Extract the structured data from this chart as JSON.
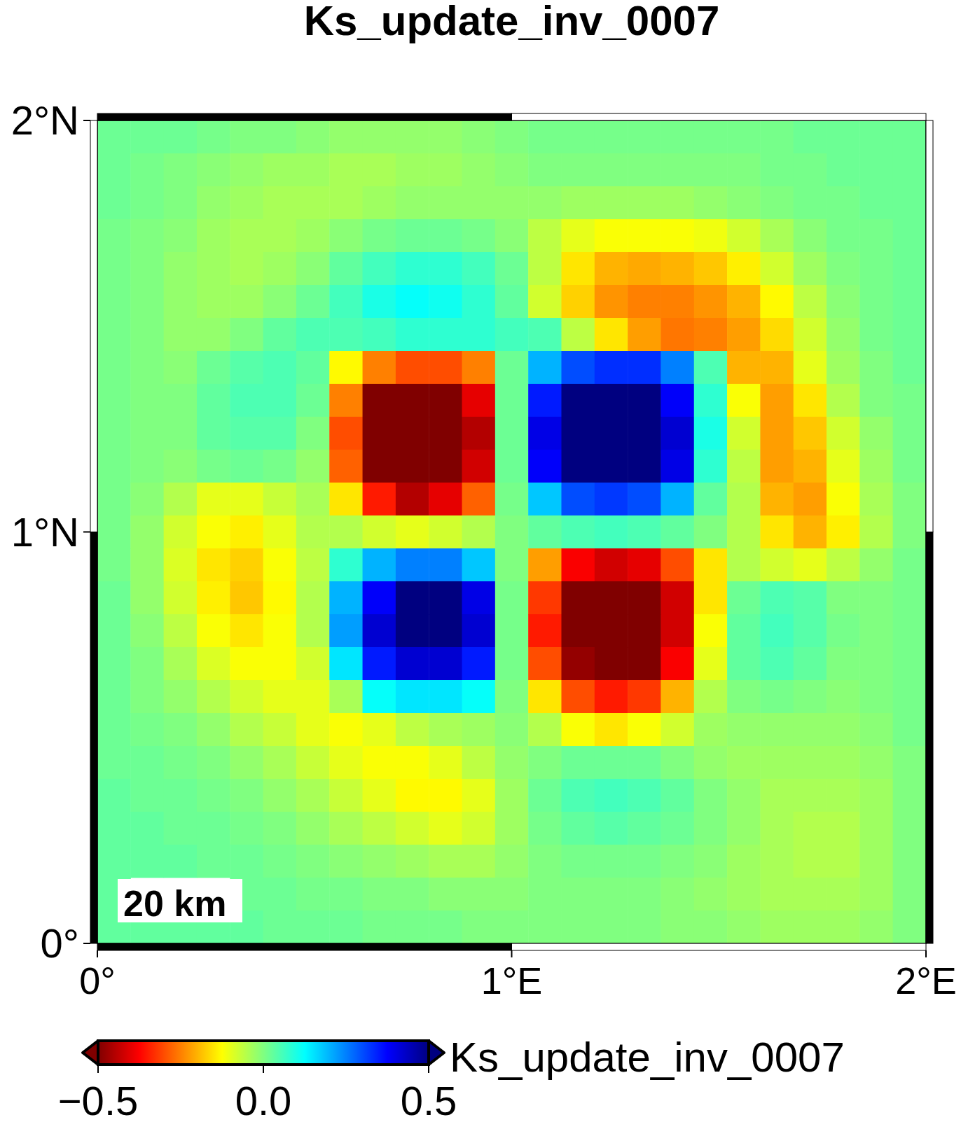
{
  "chart_data": {
    "type": "heatmap",
    "title": "Ks_update_inv_0007",
    "clabel": "Ks_update_inv_0007",
    "annotations": [
      "20 km"
    ],
    "xlim": [
      0,
      2
    ],
    "xticks": [
      {
        "value": 0,
        "label": "0°"
      },
      {
        "value": 1,
        "label": "1°E"
      },
      {
        "value": 2,
        "label": "2°E"
      }
    ],
    "ylim": [
      0,
      2
    ],
    "yticks": [
      {
        "value": 0,
        "label": "0°"
      },
      {
        "value": 1,
        "label": "1°N"
      },
      {
        "value": 2,
        "label": "2°N"
      }
    ],
    "clim": [
      -0.5,
      0.5
    ],
    "cticks": [
      {
        "value": -0.5,
        "label": "−0.5"
      },
      {
        "value": 0,
        "label": "0.0"
      },
      {
        "value": 0.5,
        "label": "0.5"
      }
    ],
    "cells": [
      [
        0.02,
        0.02,
        0.02,
        0.01,
        0,
        0,
        -0.01,
        -0.02,
        -0.02,
        -0.02,
        -0.02,
        -0.01,
        0,
        0.01,
        0.01,
        0.01,
        0.01,
        0.01,
        0.01,
        0.01,
        0.01,
        0.02,
        0.02,
        0.02,
        0.02
      ],
      [
        0.02,
        0.01,
        0,
        -0.01,
        -0.02,
        -0.03,
        -0.03,
        -0.04,
        -0.04,
        -0.03,
        -0.03,
        -0.02,
        -0.01,
        0,
        0,
        0,
        0,
        0,
        0,
        0,
        0.01,
        0.01,
        0.02,
        0.02,
        0.02
      ],
      [
        0.02,
        0.01,
        0,
        -0.02,
        -0.03,
        -0.04,
        -0.04,
        -0.04,
        -0.03,
        -0.02,
        -0.02,
        -0.02,
        -0.02,
        -0.02,
        -0.03,
        -0.03,
        -0.03,
        -0.03,
        -0.02,
        -0.01,
        0,
        0.01,
        0.01,
        0.02,
        0.02
      ],
      [
        0.01,
        0,
        -0.01,
        -0.03,
        -0.04,
        -0.04,
        -0.03,
        -0.01,
        0.01,
        0.02,
        0.02,
        0.01,
        -0.01,
        -0.06,
        -0.1,
        -0.12,
        -0.12,
        -0.12,
        -0.11,
        -0.08,
        -0.04,
        -0.01,
        0.01,
        0.01,
        0.02
      ],
      [
        0.01,
        0,
        -0.02,
        -0.03,
        -0.04,
        -0.03,
        -0.01,
        0.03,
        0.06,
        0.08,
        0.08,
        0.06,
        0.02,
        -0.06,
        -0.15,
        -0.2,
        -0.21,
        -0.2,
        -0.18,
        -0.14,
        -0.08,
        -0.03,
        0,
        0.01,
        0.02
      ],
      [
        0.01,
        0,
        -0.02,
        -0.03,
        -0.03,
        -0.01,
        0.02,
        0.06,
        0.1,
        0.12,
        0.11,
        0.08,
        0.03,
        -0.08,
        -0.17,
        -0.23,
        -0.25,
        -0.25,
        -0.23,
        -0.2,
        -0.13,
        -0.06,
        -0.01,
        0.01,
        0.02
      ],
      [
        0.01,
        0,
        -0.02,
        -0.02,
        0,
        0.03,
        0.05,
        0.05,
        0.06,
        0.08,
        0.08,
        0.08,
        0.06,
        0.05,
        -0.06,
        -0.15,
        -0.22,
        -0.26,
        -0.25,
        -0.22,
        -0.16,
        -0.08,
        -0.02,
        0.01,
        0.02
      ],
      [
        0.01,
        0,
        -0.01,
        0.02,
        0.04,
        0.05,
        0.03,
        -0.13,
        -0.25,
        -0.3,
        -0.3,
        -0.25,
        0.02,
        0.2,
        0.3,
        0.33,
        0.33,
        0.25,
        0.05,
        -0.2,
        -0.2,
        -0.1,
        -0.03,
        0,
        0.02
      ],
      [
        0.01,
        0,
        0,
        0.03,
        0.05,
        0.05,
        0.02,
        -0.25,
        -0.5,
        -0.5,
        -0.5,
        -0.4,
        0.02,
        0.35,
        0.5,
        0.5,
        0.5,
        0.38,
        0.08,
        -0.12,
        -0.22,
        -0.15,
        -0.05,
        0,
        0.01
      ],
      [
        0.01,
        0,
        0,
        0.03,
        0.04,
        0.04,
        0,
        -0.3,
        -0.5,
        -0.5,
        -0.5,
        -0.45,
        0.02,
        0.4,
        0.5,
        0.5,
        0.5,
        0.42,
        0.1,
        -0.08,
        -0.22,
        -0.18,
        -0.08,
        -0.02,
        0.01
      ],
      [
        0.01,
        0,
        -0.01,
        0.01,
        0.02,
        0.01,
        -0.02,
        -0.28,
        -0.5,
        -0.5,
        -0.5,
        -0.42,
        0.02,
        0.38,
        0.5,
        0.5,
        0.5,
        0.4,
        0.08,
        -0.06,
        -0.22,
        -0.2,
        -0.1,
        -0.03,
        0.01
      ],
      [
        0.01,
        -0.01,
        -0.05,
        -0.1,
        -0.1,
        -0.07,
        -0.04,
        -0.15,
        -0.35,
        -0.45,
        -0.4,
        -0.28,
        0.01,
        0.18,
        0.3,
        0.32,
        0.3,
        0.2,
        0.03,
        -0.05,
        -0.2,
        -0.22,
        -0.12,
        -0.04,
        0
      ],
      [
        0.01,
        -0.02,
        -0.08,
        -0.12,
        -0.14,
        -0.1,
        -0.05,
        -0.05,
        -0.08,
        -0.1,
        -0.08,
        -0.05,
        0,
        0.03,
        0.05,
        0.06,
        0.05,
        0.03,
        0,
        -0.05,
        -0.15,
        -0.2,
        -0.14,
        -0.05,
        0
      ],
      [
        0.01,
        -0.02,
        -0.09,
        -0.15,
        -0.17,
        -0.12,
        -0.06,
        0.08,
        0.2,
        0.25,
        0.25,
        0.18,
        0,
        -0.22,
        -0.38,
        -0.42,
        -0.4,
        -0.3,
        -0.15,
        -0.05,
        -0.08,
        -0.1,
        -0.06,
        -0.02,
        0.01
      ],
      [
        0.02,
        -0.02,
        -0.08,
        -0.14,
        -0.18,
        -0.13,
        -0.05,
        0.2,
        0.38,
        0.5,
        0.5,
        0.4,
        0.01,
        -0.32,
        -0.5,
        -0.5,
        -0.5,
        -0.42,
        -0.15,
        0.02,
        0.05,
        0.04,
        0,
        0,
        0.01
      ],
      [
        0.02,
        -0.01,
        -0.06,
        -0.12,
        -0.15,
        -0.12,
        -0.05,
        0.22,
        0.42,
        0.5,
        0.5,
        0.42,
        0.01,
        -0.35,
        -0.5,
        -0.5,
        -0.5,
        -0.42,
        -0.12,
        0.03,
        0.06,
        0.04,
        0.01,
        0,
        0.01
      ],
      [
        0.02,
        0,
        -0.04,
        -0.09,
        -0.12,
        -0.12,
        -0.08,
        0.15,
        0.35,
        0.42,
        0.42,
        0.35,
        0.01,
        -0.3,
        -0.48,
        -0.5,
        -0.5,
        -0.38,
        -0.1,
        0.03,
        0.05,
        0.03,
        0,
        0,
        0.01
      ],
      [
        0.02,
        0,
        -0.02,
        -0.05,
        -0.08,
        -0.1,
        -0.1,
        -0.04,
        0.12,
        0.15,
        0.15,
        0.12,
        0,
        -0.15,
        -0.3,
        -0.35,
        -0.32,
        -0.2,
        -0.05,
        0,
        0.01,
        0,
        -0.01,
        0,
        0.01
      ],
      [
        0.02,
        0.01,
        0,
        -0.02,
        -0.05,
        -0.07,
        -0.1,
        -0.12,
        -0.1,
        -0.06,
        -0.04,
        -0.03,
        -0.01,
        -0.05,
        -0.12,
        -0.15,
        -0.12,
        -0.08,
        -0.03,
        -0.02,
        -0.02,
        -0.02,
        -0.02,
        -0.01,
        0.01
      ],
      [
        0.02,
        0.02,
        0.01,
        0,
        -0.02,
        -0.04,
        -0.07,
        -0.1,
        -0.12,
        -0.12,
        -0.1,
        -0.06,
        -0.02,
        0,
        0.02,
        0.02,
        0.02,
        0,
        -0.02,
        -0.03,
        -0.03,
        -0.03,
        -0.03,
        -0.02,
        0
      ],
      [
        0.03,
        0.02,
        0.02,
        0.01,
        0,
        -0.02,
        -0.04,
        -0.07,
        -0.1,
        -0.13,
        -0.13,
        -0.1,
        -0.03,
        0.02,
        0.05,
        0.06,
        0.05,
        0.03,
        0,
        -0.02,
        -0.04,
        -0.04,
        -0.04,
        -0.03,
        0
      ],
      [
        0.03,
        0.03,
        0.02,
        0.02,
        0.01,
        0,
        -0.02,
        -0.04,
        -0.06,
        -0.08,
        -0.1,
        -0.08,
        -0.03,
        0.01,
        0.03,
        0.04,
        0.03,
        0.02,
        0,
        -0.02,
        -0.04,
        -0.05,
        -0.05,
        -0.03,
        0
      ],
      [
        0.03,
        0.03,
        0.03,
        0.02,
        0.02,
        0.01,
        0,
        -0.01,
        -0.02,
        -0.03,
        -0.04,
        -0.04,
        -0.02,
        0,
        0.01,
        0.01,
        0.01,
        0,
        -0.01,
        -0.03,
        -0.04,
        -0.05,
        -0.05,
        -0.03,
        0
      ],
      [
        0.03,
        null,
        null,
        null,
        0.02,
        0.02,
        0.01,
        0.01,
        0,
        0,
        -0.01,
        -0.01,
        -0.01,
        0,
        0,
        0,
        0,
        -0.01,
        -0.02,
        -0.03,
        -0.04,
        -0.04,
        -0.04,
        -0.03,
        0
      ],
      [
        0.03,
        0.03,
        0.03,
        0.03,
        0.03,
        0.02,
        0.02,
        0.02,
        0.01,
        0.01,
        0.01,
        0,
        0,
        0,
        0,
        0,
        0,
        -0.01,
        -0.01,
        -0.02,
        -0.03,
        -0.03,
        -0.03,
        -0.02,
        0
      ]
    ]
  }
}
